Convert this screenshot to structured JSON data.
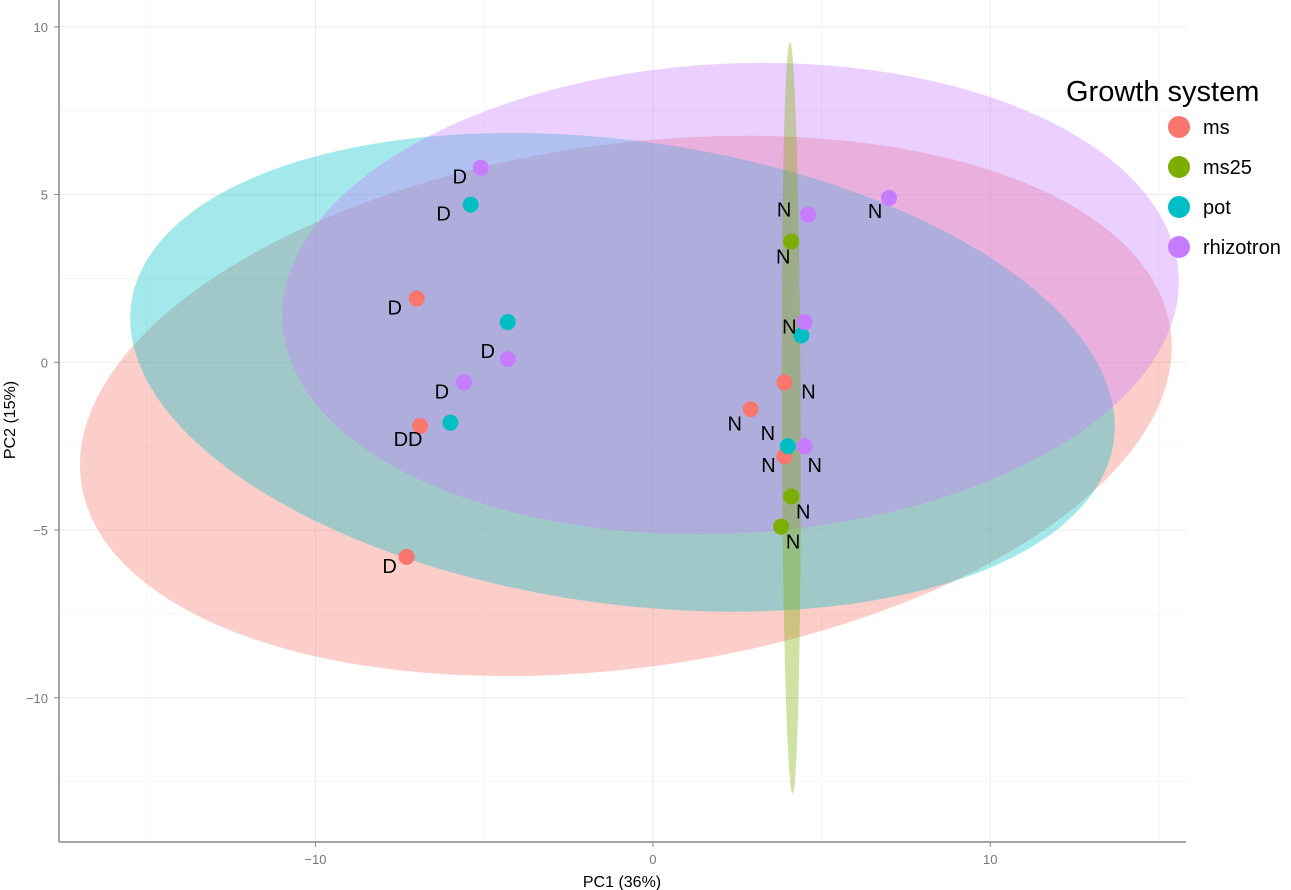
{
  "chart_data": {
    "type": "scatter",
    "title": "",
    "xlabel": "PC1 (36%)",
    "ylabel": "PC2 (15%)",
    "xlim": [
      -17.6,
      15.8
    ],
    "ylim": [
      -14.3,
      10.8
    ],
    "x_ticks": [
      -10,
      0,
      10
    ],
    "y_ticks": [
      10,
      5,
      0,
      -5,
      -10
    ],
    "grid": true,
    "legend": {
      "title": "Growth system",
      "position": "top-right",
      "entries": [
        {
          "name": "ms",
          "color": "#F8766D"
        },
        {
          "name": "ms25",
          "color": "#7CAE00"
        },
        {
          "name": "pot",
          "color": "#00BFC4"
        },
        {
          "name": "rhizotron",
          "color": "#C77CFF"
        }
      ]
    },
    "ellipses": [
      {
        "group": "ms",
        "color": "#F8766D",
        "cx": -0.8,
        "cy": -1.3,
        "rx": 16.3,
        "ry": 7.8,
        "angle_deg": 8
      },
      {
        "group": "pot",
        "color": "#00BFC4",
        "cx": -0.9,
        "cy": -0.3,
        "rx": 14.7,
        "ry": 6.9,
        "angle_deg": -8
      },
      {
        "group": "rhizotron",
        "color": "#C77CFF",
        "cx": 2.3,
        "cy": 1.9,
        "rx": 13.3,
        "ry": 7.0,
        "angle_deg": 3
      },
      {
        "group": "ms25",
        "color": "#7CAE00",
        "cx": 4.1,
        "cy": -1.65,
        "rx": 0.28,
        "ry": 11.2,
        "angle_deg": 0.2
      }
    ],
    "series": [
      {
        "name": "ms",
        "color": "#F8766D",
        "points": [
          {
            "x": -7.0,
            "y": 1.9,
            "label": "D"
          },
          {
            "x": -6.9,
            "y": -1.9,
            "label": "DD"
          },
          {
            "x": -7.3,
            "y": -5.8,
            "label": "D"
          },
          {
            "x": 2.9,
            "y": -1.4,
            "label": "N"
          },
          {
            "x": 3.9,
            "y": -0.6,
            "label": "N"
          },
          {
            "x": 3.9,
            "y": -2.8,
            "label": "N"
          }
        ]
      },
      {
        "name": "ms25",
        "color": "#7CAE00",
        "points": [
          {
            "x": 4.1,
            "y": 3.6,
            "label": "N"
          },
          {
            "x": 4.1,
            "y": -4.0,
            "label": "N"
          },
          {
            "x": 3.8,
            "y": -4.9,
            "label": "N"
          }
        ]
      },
      {
        "name": "pot",
        "color": "#00BFC4",
        "points": [
          {
            "x": -5.4,
            "y": 4.7,
            "label": "D"
          },
          {
            "x": -4.3,
            "y": 1.2,
            "label": "D"
          },
          {
            "x": -6.0,
            "y": -1.8,
            "label": ""
          },
          {
            "x": 4.4,
            "y": 0.8,
            "label": "N"
          },
          {
            "x": 4.0,
            "y": -2.5,
            "label": "N"
          }
        ]
      },
      {
        "name": "rhizotron",
        "color": "#C77CFF",
        "points": [
          {
            "x": -5.1,
            "y": 5.8,
            "label": "D"
          },
          {
            "x": -4.3,
            "y": 0.1,
            "label": ""
          },
          {
            "x": -5.6,
            "y": -0.6,
            "label": "D"
          },
          {
            "x": 4.6,
            "y": 4.4,
            "label": "N"
          },
          {
            "x": 7.0,
            "y": 4.9,
            "label": "N"
          },
          {
            "x": 4.5,
            "y": 1.2,
            "label": ""
          },
          {
            "x": 4.5,
            "y": -2.5,
            "label": "N"
          }
        ]
      }
    ]
  }
}
